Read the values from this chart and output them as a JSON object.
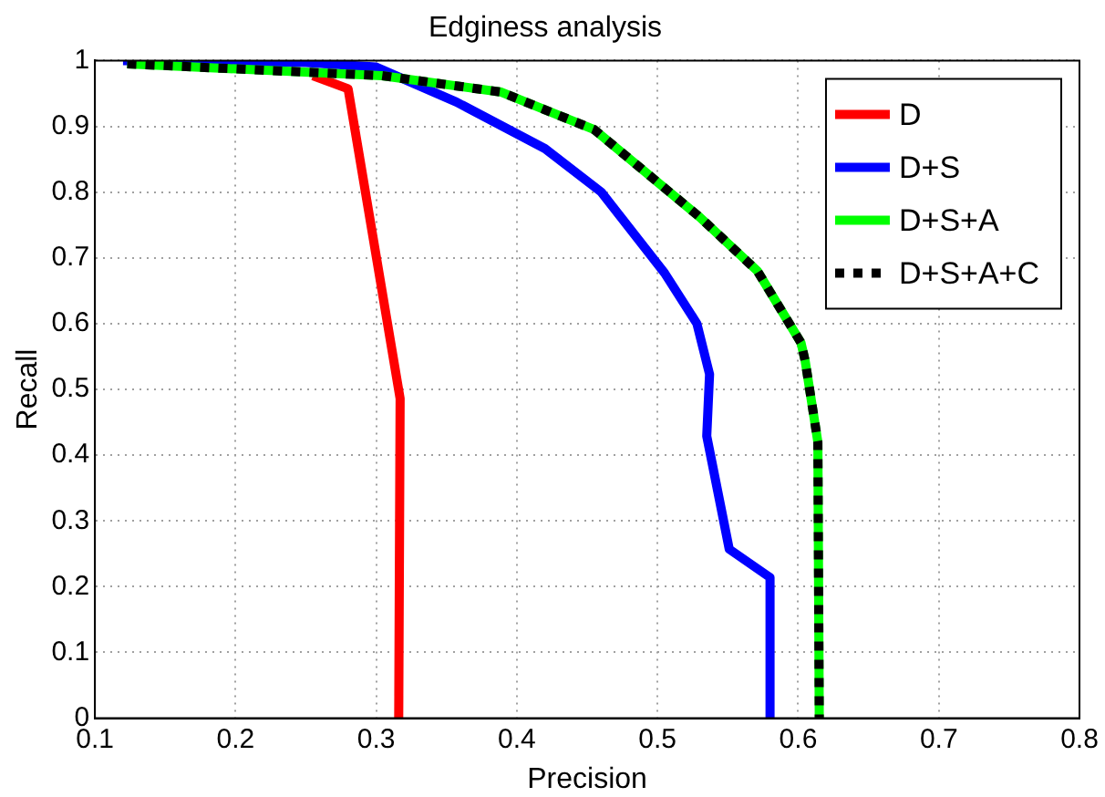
{
  "chart_data": {
    "type": "line",
    "title": "Edginess analysis",
    "xlabel": "Precision",
    "ylabel": "Recall",
    "xlim": [
      0.1,
      0.8
    ],
    "xticks": [
      0.1,
      0.2,
      0.3,
      0.4,
      0.5,
      0.6,
      0.7,
      0.8
    ],
    "ylim": [
      0,
      1
    ],
    "yticks": [
      0,
      0.1,
      0.2,
      0.3,
      0.4,
      0.5,
      0.6,
      0.7,
      0.8,
      0.9,
      1
    ],
    "grid": true,
    "legend": "top right",
    "marker": "none",
    "series": [
      {
        "name": "D",
        "color": "#ff0000",
        "x": [
          0.255,
          0.28,
          0.317,
          0.316
        ],
        "values": [
          0.977,
          0.957,
          0.486,
          0
        ]
      },
      {
        "name": "D+S",
        "color": "#0000ff",
        "x": [
          0.12,
          0.25,
          0.3,
          0.357,
          0.42,
          0.46,
          0.505,
          0.528,
          0.537,
          0.535,
          0.551,
          0.58,
          0.58
        ],
        "values": [
          1,
          0.997,
          0.99,
          0.937,
          0.866,
          0.8,
          0.677,
          0.6,
          0.523,
          0.429,
          0.257,
          0.214,
          0
        ]
      },
      {
        "name": "D+S+A",
        "color": "#00ff00",
        "x": [
          0.123,
          0.304,
          0.389,
          0.455,
          0.53,
          0.571,
          0.602,
          0.605,
          0.614,
          0.615
        ],
        "values": [
          0.995,
          0.977,
          0.952,
          0.895,
          0.762,
          0.68,
          0.571,
          0.543,
          0.42,
          0
        ]
      },
      {
        "name": "D+S+A+C",
        "color": "#000000",
        "line_style": "dotted",
        "x": [
          0.123,
          0.304,
          0.389,
          0.455,
          0.53,
          0.571,
          0.602,
          0.605,
          0.614,
          0.615
        ],
        "values": [
          0.995,
          0.977,
          0.952,
          0.895,
          0.762,
          0.68,
          0.571,
          0.543,
          0.42,
          0
        ]
      }
    ]
  }
}
